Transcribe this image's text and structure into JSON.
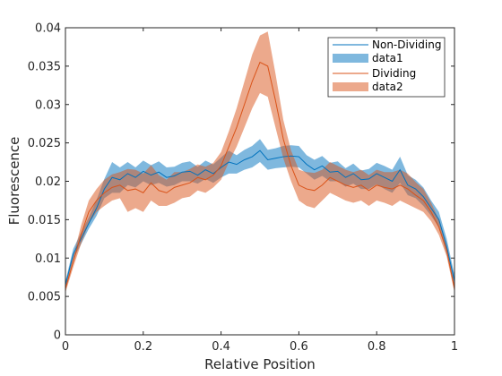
{
  "chart_data": {
    "type": "line",
    "xlabel": "Relative Position",
    "ylabel": "Fluorescence",
    "xlim": [
      0,
      1
    ],
    "ylim": [
      0,
      0.04
    ],
    "xticks": [
      0,
      0.2,
      0.4,
      0.6,
      0.8,
      1
    ],
    "yticks": [
      0,
      0.005,
      0.01,
      0.015,
      0.02,
      0.025,
      0.03,
      0.035,
      0.04
    ],
    "xtick_labels": [
      "0",
      "0.2",
      "0.4",
      "0.6",
      "0.8",
      "1"
    ],
    "ytick_labels": [
      "0",
      "0.005",
      "0.01",
      "0.015",
      "0.02",
      "0.025",
      "0.03",
      "0.035",
      "0.04"
    ],
    "grid": false,
    "legend_position": "top-right",
    "x": [
      0,
      0.02,
      0.04,
      0.06,
      0.08,
      0.1,
      0.12,
      0.14,
      0.16,
      0.18,
      0.2,
      0.22,
      0.24,
      0.26,
      0.28,
      0.3,
      0.32,
      0.34,
      0.36,
      0.38,
      0.4,
      0.42,
      0.44,
      0.46,
      0.48,
      0.5,
      0.52,
      0.54,
      0.56,
      0.58,
      0.6,
      0.62,
      0.64,
      0.66,
      0.68,
      0.7,
      0.72,
      0.74,
      0.76,
      0.78,
      0.8,
      0.82,
      0.84,
      0.86,
      0.88,
      0.9,
      0.92,
      0.94,
      0.96,
      0.98,
      1
    ],
    "series": [
      {
        "name": "Non-Dividing",
        "color": "#0072BD",
        "values": [
          0.0065,
          0.0105,
          0.0125,
          0.0145,
          0.0165,
          0.019,
          0.0205,
          0.0202,
          0.021,
          0.0205,
          0.0213,
          0.0208,
          0.0212,
          0.0205,
          0.0207,
          0.0212,
          0.0213,
          0.0208,
          0.0215,
          0.021,
          0.0218,
          0.0225,
          0.0222,
          0.0228,
          0.0232,
          0.024,
          0.0228,
          0.023,
          0.0232,
          0.0233,
          0.0232,
          0.0222,
          0.0215,
          0.022,
          0.0212,
          0.0213,
          0.0205,
          0.021,
          0.0202,
          0.0203,
          0.021,
          0.0205,
          0.02,
          0.0215,
          0.0195,
          0.019,
          0.018,
          0.0165,
          0.015,
          0.0115,
          0.007
        ]
      },
      {
        "name": "data1",
        "color": "#0072BD",
        "lower": [
          0.006,
          0.0098,
          0.0118,
          0.0138,
          0.0155,
          0.0178,
          0.0185,
          0.0185,
          0.0195,
          0.0192,
          0.02,
          0.0195,
          0.0198,
          0.0193,
          0.0195,
          0.02,
          0.02,
          0.0197,
          0.0203,
          0.0198,
          0.0205,
          0.021,
          0.021,
          0.0215,
          0.0218,
          0.0225,
          0.0215,
          0.0217,
          0.0218,
          0.0219,
          0.0218,
          0.021,
          0.0202,
          0.0207,
          0.02,
          0.02,
          0.0193,
          0.0197,
          0.019,
          0.019,
          0.0196,
          0.019,
          0.0185,
          0.0198,
          0.0182,
          0.0178,
          0.0168,
          0.0155,
          0.014,
          0.0105,
          0.0062
        ],
        "upper": [
          0.007,
          0.0112,
          0.0133,
          0.0153,
          0.0176,
          0.0203,
          0.0225,
          0.0218,
          0.0225,
          0.0218,
          0.0227,
          0.0221,
          0.0226,
          0.0218,
          0.0219,
          0.0224,
          0.0226,
          0.0219,
          0.0227,
          0.0222,
          0.0231,
          0.024,
          0.0234,
          0.0241,
          0.0246,
          0.0255,
          0.0241,
          0.0243,
          0.0246,
          0.0247,
          0.0246,
          0.0234,
          0.0228,
          0.0233,
          0.0224,
          0.0226,
          0.0217,
          0.0223,
          0.0214,
          0.0216,
          0.0224,
          0.022,
          0.0215,
          0.0232,
          0.0208,
          0.0202,
          0.0192,
          0.0175,
          0.016,
          0.0125,
          0.0078
        ]
      },
      {
        "name": "Dividing",
        "color": "#D95319",
        "values": [
          0.006,
          0.0095,
          0.013,
          0.016,
          0.0175,
          0.0185,
          0.0192,
          0.0195,
          0.0188,
          0.019,
          0.0185,
          0.0198,
          0.0188,
          0.0185,
          0.0192,
          0.0195,
          0.0198,
          0.0205,
          0.0202,
          0.0208,
          0.022,
          0.0245,
          0.027,
          0.03,
          0.033,
          0.0355,
          0.035,
          0.0305,
          0.0255,
          0.022,
          0.0195,
          0.019,
          0.0188,
          0.0195,
          0.0205,
          0.02,
          0.0195,
          0.0192,
          0.0195,
          0.0188,
          0.0195,
          0.0192,
          0.019,
          0.0195,
          0.019,
          0.0182,
          0.0175,
          0.016,
          0.014,
          0.011,
          0.006
        ]
      },
      {
        "name": "data2",
        "color": "#D95319",
        "lower": [
          0.0055,
          0.0088,
          0.0118,
          0.0145,
          0.016,
          0.0168,
          0.0175,
          0.0178,
          0.016,
          0.0165,
          0.016,
          0.0175,
          0.0168,
          0.0168,
          0.0172,
          0.0178,
          0.018,
          0.0188,
          0.0185,
          0.0192,
          0.0202,
          0.0225,
          0.0245,
          0.027,
          0.0295,
          0.0315,
          0.031,
          0.027,
          0.023,
          0.02,
          0.0175,
          0.0168,
          0.0165,
          0.0175,
          0.0185,
          0.018,
          0.0175,
          0.0172,
          0.0175,
          0.0168,
          0.0175,
          0.0172,
          0.0168,
          0.0175,
          0.017,
          0.0165,
          0.016,
          0.0148,
          0.013,
          0.0102,
          0.0055
        ],
        "upper": [
          0.0065,
          0.0102,
          0.0142,
          0.0175,
          0.019,
          0.0202,
          0.0209,
          0.0212,
          0.0216,
          0.0215,
          0.021,
          0.0221,
          0.0208,
          0.0202,
          0.0212,
          0.0212,
          0.0216,
          0.0222,
          0.0219,
          0.0224,
          0.0238,
          0.0265,
          0.0295,
          0.033,
          0.0365,
          0.039,
          0.0395,
          0.034,
          0.028,
          0.024,
          0.0215,
          0.0212,
          0.0211,
          0.0215,
          0.0225,
          0.022,
          0.0215,
          0.0212,
          0.0215,
          0.0208,
          0.0215,
          0.0212,
          0.0212,
          0.0215,
          0.021,
          0.0199,
          0.019,
          0.0172,
          0.015,
          0.0118,
          0.0065
        ]
      }
    ]
  }
}
